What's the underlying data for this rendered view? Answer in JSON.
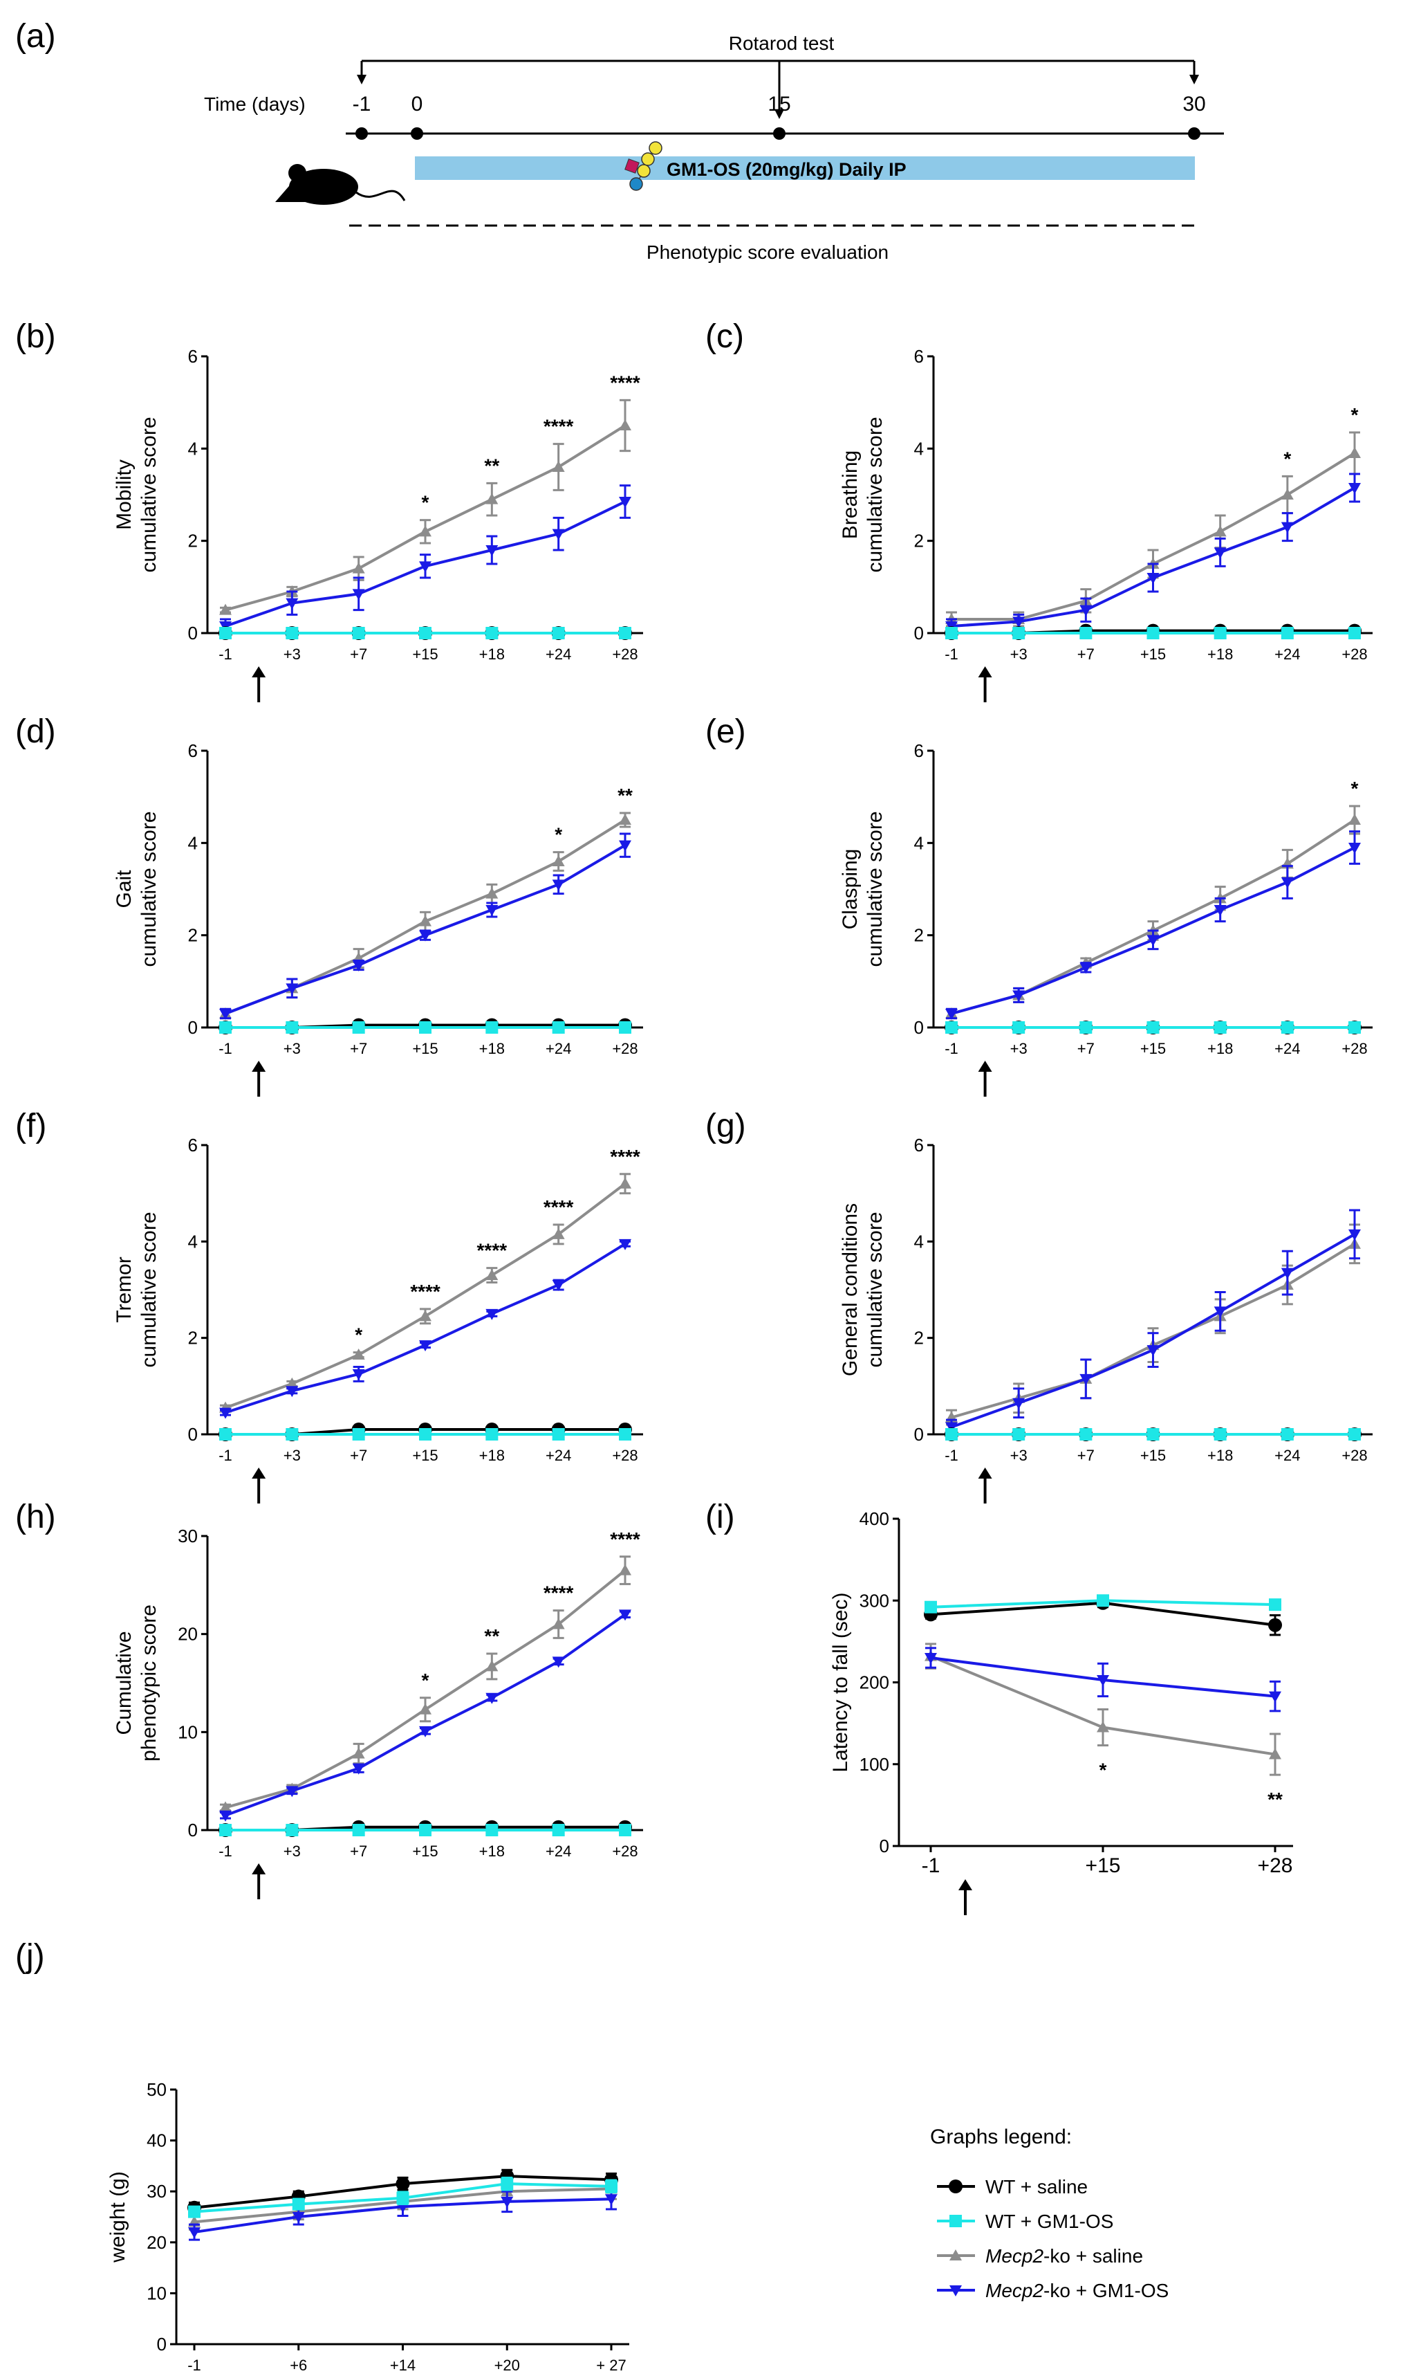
{
  "colors": {
    "wt_saline": "#000000",
    "wt_gm1": "#1ee6e6",
    "ko_saline": "#8c8c8c",
    "ko_gm1": "#1a1ae6",
    "timeline_bar": "#8ec9e8"
  },
  "timeline": {
    "panel": "(a)",
    "rotarod_label": "Rotarod test",
    "time_label": "Time (days)",
    "days": [
      "-1",
      "0",
      "15",
      "30"
    ],
    "treatment_label": "GM1-OS (20mg/kg) Daily IP",
    "phenotype_label": "Phenotypic score evaluation",
    "glycan_colors": [
      "#c2185b",
      "#f2e33a",
      "#f2e33a",
      "#f2e33a",
      "#1e88c8"
    ]
  },
  "legend": {
    "title": "Graphs legend:",
    "entries": [
      {
        "series": "wt_saline",
        "pre": "WT + saline",
        "italic": "",
        "post": ""
      },
      {
        "series": "wt_gm1",
        "pre": "WT + GM1-OS",
        "italic": "",
        "post": ""
      },
      {
        "series": "ko_saline",
        "pre": "",
        "italic": "Mecp2",
        "post": "-ko + saline"
      },
      {
        "series": "ko_gm1",
        "pre": "",
        "italic": "Mecp2",
        "post": "-ko + GM1-OS"
      }
    ]
  },
  "chart_data": [
    {
      "id": "b",
      "panel": "(b)",
      "type": "line",
      "ylabel": [
        "Mobility",
        "cumulative score"
      ],
      "categories": [
        "-1",
        "+3",
        "+7",
        "+15",
        "+18",
        "+24",
        "+28"
      ],
      "ylim": [
        0,
        6
      ],
      "yticks": [
        0,
        2,
        4,
        6
      ],
      "arrow_after_index": 0,
      "series": [
        {
          "key": "wt_saline",
          "name": "WT + saline",
          "values": [
            0,
            0,
            0,
            0,
            0,
            0,
            0
          ],
          "err": [
            0,
            0,
            0,
            0,
            0,
            0,
            0
          ]
        },
        {
          "key": "wt_gm1",
          "name": "WT + GM1-OS",
          "values": [
            0,
            0,
            0,
            0,
            0,
            0,
            0
          ],
          "err": [
            0,
            0,
            0,
            0,
            0,
            0,
            0
          ]
        },
        {
          "key": "ko_saline",
          "name": "Mecp2-ko + saline",
          "values": [
            0.5,
            0.9,
            1.4,
            2.2,
            2.9,
            3.6,
            4.5
          ],
          "err": [
            0.05,
            0.1,
            0.25,
            0.25,
            0.35,
            0.5,
            0.55
          ]
        },
        {
          "key": "ko_gm1",
          "name": "Mecp2-ko + GM1-OS",
          "values": [
            0.15,
            0.65,
            0.85,
            1.45,
            1.8,
            2.15,
            2.85
          ],
          "err": [
            0.15,
            0.25,
            0.35,
            0.25,
            0.3,
            0.35,
            0.35
          ]
        }
      ],
      "stars": [
        "",
        "",
        "",
        "*",
        "**",
        "****",
        "****"
      ]
    },
    {
      "id": "c",
      "panel": "(c)",
      "type": "line",
      "ylabel": [
        "Breathing",
        "cumulative score"
      ],
      "categories": [
        "-1",
        "+3",
        "+7",
        "+15",
        "+18",
        "+24",
        "+28"
      ],
      "ylim": [
        0,
        6
      ],
      "yticks": [
        0,
        2,
        4,
        6
      ],
      "arrow_after_index": 0,
      "series": [
        {
          "key": "wt_saline",
          "name": "WT + saline",
          "values": [
            0,
            0,
            0.05,
            0.05,
            0.05,
            0.05,
            0.05
          ],
          "err": [
            0,
            0,
            0.05,
            0.05,
            0.05,
            0.05,
            0.05
          ]
        },
        {
          "key": "wt_gm1",
          "name": "WT + GM1-OS",
          "values": [
            0,
            0,
            0,
            0,
            0,
            0,
            0
          ],
          "err": [
            0,
            0,
            0,
            0,
            0,
            0,
            0
          ]
        },
        {
          "key": "ko_saline",
          "name": "Mecp2-ko + saline",
          "values": [
            0.3,
            0.3,
            0.7,
            1.5,
            2.2,
            3.0,
            3.9
          ],
          "err": [
            0.15,
            0.15,
            0.25,
            0.3,
            0.35,
            0.4,
            0.45
          ]
        },
        {
          "key": "ko_gm1",
          "name": "Mecp2-ko + GM1-OS",
          "values": [
            0.15,
            0.25,
            0.5,
            1.2,
            1.75,
            2.3,
            3.15
          ],
          "err": [
            0.15,
            0.15,
            0.25,
            0.3,
            0.3,
            0.3,
            0.3
          ]
        }
      ],
      "stars": [
        "",
        "",
        "",
        "",
        "",
        "*",
        "*"
      ]
    },
    {
      "id": "d",
      "panel": "(d)",
      "type": "line",
      "ylabel": [
        "Gait",
        "cumulative score"
      ],
      "categories": [
        "-1",
        "+3",
        "+7",
        "+15",
        "+18",
        "+24",
        "+28"
      ],
      "ylim": [
        0,
        6
      ],
      "yticks": [
        0,
        2,
        4,
        6
      ],
      "arrow_after_index": 0,
      "series": [
        {
          "key": "wt_saline",
          "name": "WT + saline",
          "values": [
            0,
            0,
            0.05,
            0.05,
            0.05,
            0.05,
            0.05
          ],
          "err": [
            0,
            0,
            0.05,
            0.05,
            0.05,
            0.05,
            0.05
          ]
        },
        {
          "key": "wt_gm1",
          "name": "WT + GM1-OS",
          "values": [
            0,
            0,
            0,
            0,
            0,
            0,
            0
          ],
          "err": [
            0,
            0,
            0,
            0,
            0,
            0,
            0
          ]
        },
        {
          "key": "ko_saline",
          "name": "Mecp2-ko + saline",
          "values": [
            0.3,
            0.85,
            1.5,
            2.3,
            2.9,
            3.6,
            4.5
          ],
          "err": [
            0.1,
            0.2,
            0.2,
            0.2,
            0.2,
            0.2,
            0.15
          ]
        },
        {
          "key": "ko_gm1",
          "name": "Mecp2-ko + GM1-OS",
          "values": [
            0.3,
            0.85,
            1.35,
            2.0,
            2.55,
            3.1,
            3.95
          ],
          "err": [
            0.1,
            0.2,
            0.1,
            0.1,
            0.15,
            0.2,
            0.25
          ]
        }
      ],
      "stars": [
        "",
        "",
        "",
        "",
        "",
        "*",
        "**"
      ]
    },
    {
      "id": "e",
      "panel": "(e)",
      "type": "line",
      "ylabel": [
        "Clasping",
        "cumulative score"
      ],
      "categories": [
        "-1",
        "+3",
        "+7",
        "+15",
        "+18",
        "+24",
        "+28"
      ],
      "ylim": [
        0,
        6
      ],
      "yticks": [
        0,
        2,
        4,
        6
      ],
      "arrow_after_index": 0,
      "series": [
        {
          "key": "wt_saline",
          "name": "WT + saline",
          "values": [
            0,
            0,
            0,
            0,
            0,
            0,
            0
          ],
          "err": [
            0,
            0,
            0,
            0,
            0,
            0,
            0
          ]
        },
        {
          "key": "wt_gm1",
          "name": "WT + GM1-OS",
          "values": [
            0,
            0,
            0,
            0,
            0,
            0,
            0
          ],
          "err": [
            0,
            0,
            0,
            0,
            0,
            0,
            0
          ]
        },
        {
          "key": "ko_saline",
          "name": "Mecp2-ko + saline",
          "values": [
            0.3,
            0.7,
            1.4,
            2.1,
            2.8,
            3.55,
            4.5
          ],
          "err": [
            0.1,
            0.15,
            0.1,
            0.2,
            0.25,
            0.3,
            0.3
          ]
        },
        {
          "key": "ko_gm1",
          "name": "Mecp2-ko + GM1-OS",
          "values": [
            0.3,
            0.7,
            1.3,
            1.9,
            2.55,
            3.15,
            3.9
          ],
          "err": [
            0.1,
            0.15,
            0.1,
            0.2,
            0.25,
            0.35,
            0.35
          ]
        }
      ],
      "stars": [
        "",
        "",
        "",
        "",
        "",
        "",
        "*"
      ]
    },
    {
      "id": "f",
      "panel": "(f)",
      "type": "line",
      "ylabel": [
        "Tremor",
        "cumulative score"
      ],
      "categories": [
        "-1",
        "+3",
        "+7",
        "+15",
        "+18",
        "+24",
        "+28"
      ],
      "ylim": [
        0,
        6
      ],
      "yticks": [
        0,
        2,
        4,
        6
      ],
      "arrow_after_index": 0,
      "series": [
        {
          "key": "wt_saline",
          "name": "WT + saline",
          "values": [
            0,
            0,
            0.1,
            0.1,
            0.1,
            0.1,
            0.1
          ],
          "err": [
            0,
            0,
            0.05,
            0.05,
            0.05,
            0.05,
            0.05
          ]
        },
        {
          "key": "wt_gm1",
          "name": "WT + GM1-OS",
          "values": [
            0,
            0,
            0,
            0,
            0,
            0,
            0
          ],
          "err": [
            0,
            0,
            0,
            0,
            0,
            0,
            0
          ]
        },
        {
          "key": "ko_saline",
          "name": "Mecp2-ko + saline",
          "values": [
            0.55,
            1.05,
            1.65,
            2.45,
            3.3,
            4.15,
            5.2
          ],
          "err": [
            0.05,
            0.05,
            0.05,
            0.15,
            0.15,
            0.2,
            0.2
          ]
        },
        {
          "key": "ko_gm1",
          "name": "Mecp2-ko + GM1-OS",
          "values": [
            0.45,
            0.9,
            1.25,
            1.85,
            2.5,
            3.1,
            3.95
          ],
          "err": [
            0.05,
            0.05,
            0.15,
            0.05,
            0.05,
            0.1,
            0.05
          ]
        }
      ],
      "stars": [
        "",
        "",
        "*",
        "****",
        "****",
        "****",
        "****"
      ]
    },
    {
      "id": "g",
      "panel": "(g)",
      "type": "line",
      "ylabel": [
        "General conditions",
        "cumulative score"
      ],
      "categories": [
        "-1",
        "+3",
        "+7",
        "+15",
        "+18",
        "+24",
        "+28"
      ],
      "ylim": [
        0,
        6
      ],
      "yticks": [
        0,
        2,
        4,
        6
      ],
      "arrow_after_index": 0,
      "series": [
        {
          "key": "wt_saline",
          "name": "WT + saline",
          "values": [
            0,
            0,
            0,
            0,
            0,
            0,
            0
          ],
          "err": [
            0,
            0,
            0,
            0,
            0,
            0,
            0
          ]
        },
        {
          "key": "wt_gm1",
          "name": "WT + GM1-OS",
          "values": [
            0,
            0,
            0,
            0,
            0,
            0,
            0
          ],
          "err": [
            0,
            0,
            0,
            0,
            0,
            0,
            0
          ]
        },
        {
          "key": "ko_saline",
          "name": "Mecp2-ko + saline",
          "values": [
            0.35,
            0.75,
            1.15,
            1.85,
            2.45,
            3.1,
            3.95
          ],
          "err": [
            0.15,
            0.3,
            0.4,
            0.35,
            0.35,
            0.4,
            0.4
          ]
        },
        {
          "key": "ko_gm1",
          "name": "Mecp2-ko + GM1-OS",
          "values": [
            0.15,
            0.65,
            1.15,
            1.75,
            2.55,
            3.35,
            4.15
          ],
          "err": [
            0.15,
            0.3,
            0.4,
            0.35,
            0.4,
            0.45,
            0.5
          ]
        }
      ],
      "stars": [
        "",
        "",
        "",
        "",
        "",
        "",
        ""
      ]
    },
    {
      "id": "h",
      "panel": "(h)",
      "type": "line",
      "ylabel": [
        "Cumulative",
        "phenotypic score"
      ],
      "categories": [
        "-1",
        "+3",
        "+7",
        "+15",
        "+18",
        "+24",
        "+28"
      ],
      "ylim": [
        0,
        30
      ],
      "yticks": [
        0,
        10,
        20,
        30
      ],
      "arrow_after_index": 0,
      "series": [
        {
          "key": "wt_saline",
          "name": "WT + saline",
          "values": [
            0,
            0,
            0.3,
            0.3,
            0.3,
            0.3,
            0.3
          ],
          "err": [
            0,
            0,
            0.2,
            0.2,
            0.2,
            0.2,
            0.2
          ]
        },
        {
          "key": "wt_gm1",
          "name": "WT + GM1-OS",
          "values": [
            0,
            0,
            0,
            0,
            0,
            0,
            0
          ],
          "err": [
            0,
            0,
            0,
            0,
            0,
            0,
            0
          ]
        },
        {
          "key": "ko_saline",
          "name": "Mecp2-ko + saline",
          "values": [
            2.3,
            4.2,
            7.8,
            12.3,
            16.7,
            21.0,
            26.5
          ],
          "err": [
            0.3,
            0.4,
            1.0,
            1.2,
            1.3,
            1.4,
            1.4
          ]
        },
        {
          "key": "ko_gm1",
          "name": "Mecp2-ko + GM1-OS",
          "values": [
            1.5,
            4.0,
            6.3,
            10.1,
            13.5,
            17.2,
            22.0
          ],
          "err": [
            0.3,
            0.3,
            0.4,
            0.3,
            0.3,
            0.3,
            0.3
          ]
        }
      ],
      "stars": [
        "",
        "",
        "",
        "*",
        "**",
        "****",
        "****"
      ]
    },
    {
      "id": "i",
      "panel": "(i)",
      "type": "line",
      "ylabel": [
        "Latency to fall (sec)"
      ],
      "categories": [
        "-1",
        "+15",
        "+28"
      ],
      "ylim": [
        0,
        400
      ],
      "yticks": [
        0,
        100,
        200,
        300,
        400
      ],
      "arrow_after_index": 0,
      "series": [
        {
          "key": "wt_saline",
          "name": "WT + saline",
          "values": [
            283,
            297,
            270
          ],
          "err": [
            5,
            5,
            12
          ]
        },
        {
          "key": "wt_gm1",
          "name": "WT + GM1-OS",
          "values": [
            292,
            300,
            295
          ],
          "err": [
            5,
            5,
            5
          ]
        },
        {
          "key": "ko_saline",
          "name": "Mecp2-ko + saline",
          "values": [
            232,
            145,
            112
          ],
          "err": [
            15,
            22,
            25
          ]
        },
        {
          "key": "ko_gm1",
          "name": "Mecp2-ko + GM1-OS",
          "values": [
            230,
            203,
            183
          ],
          "err": [
            12,
            20,
            18
          ]
        }
      ],
      "stars": [
        "",
        "*",
        "**"
      ]
    },
    {
      "id": "j",
      "panel": "(j)",
      "type": "line",
      "ylabel": [
        "weight (g)"
      ],
      "categories": [
        "-1",
        "+6",
        "+14",
        "+20",
        "+ 27"
      ],
      "ylim": [
        0,
        50
      ],
      "yticks": [
        0,
        10,
        20,
        30,
        40,
        50
      ],
      "arrow_after_index": 0,
      "series": [
        {
          "key": "wt_saline",
          "name": "WT + saline",
          "values": [
            26.8,
            29,
            31.5,
            33,
            32.3
          ],
          "err": [
            1,
            1,
            1.2,
            1.2,
            1.2
          ]
        },
        {
          "key": "wt_gm1",
          "name": "WT + GM1-OS",
          "values": [
            26,
            27.5,
            28.7,
            31.5,
            31
          ],
          "err": [
            1,
            1,
            1.2,
            1.2,
            1.2
          ]
        },
        {
          "key": "ko_saline",
          "name": "Mecp2-ko + saline",
          "values": [
            24,
            26,
            28,
            30,
            30.5
          ],
          "err": [
            1.5,
            1.5,
            1.5,
            2,
            2
          ]
        },
        {
          "key": "ko_gm1",
          "name": "Mecp2-ko + GM1-OS",
          "values": [
            22,
            25,
            27,
            28,
            28.5
          ],
          "err": [
            1.5,
            1.5,
            1.8,
            2,
            2
          ]
        }
      ],
      "stars": [
        "",
        "",
        "",
        "",
        ""
      ]
    }
  ]
}
